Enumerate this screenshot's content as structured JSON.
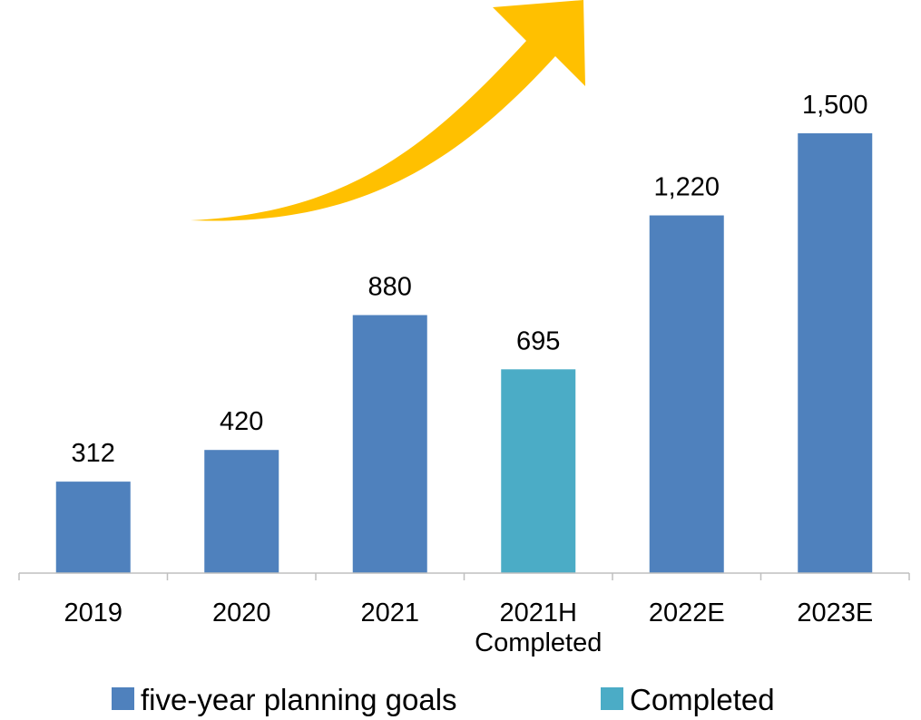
{
  "chart_data": {
    "type": "bar",
    "categories": [
      "2019",
      "2020",
      "2021",
      "2021H\nCompleted",
      "2022E",
      "2023E"
    ],
    "values": [
      312,
      420,
      880,
      695,
      1220,
      1500
    ],
    "value_labels": [
      "312",
      "420",
      "880",
      "695",
      "1,220",
      "1,500"
    ],
    "bar_series": [
      "five-year planning goals",
      "five-year planning goals",
      "five-year planning goals",
      "Completed",
      "five-year planning goals",
      "five-year planning goals"
    ],
    "series": [
      {
        "name": "five-year planning goals",
        "color": "#4f81bd"
      },
      {
        "name": "Completed",
        "color": "#4bacc6"
      }
    ],
    "title": "",
    "xlabel": "",
    "ylabel": "",
    "ylim": [
      0,
      1500
    ],
    "grid": false,
    "legend_position": "bottom",
    "annotation": {
      "type": "trend-arrow",
      "color": "#ffc000"
    }
  }
}
